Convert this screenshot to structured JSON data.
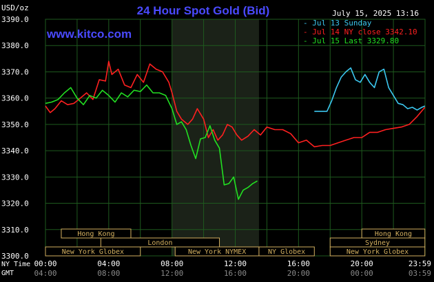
{
  "chart_data": {
    "type": "line",
    "title": "24 Hour Spot Gold (Bid)",
    "source": "www.kitco.com",
    "ylabel": "USD/oz",
    "date": "July 15, 2025 13:16",
    "ylim": [
      3300,
      3390
    ],
    "yticks": [
      "3390.0",
      "3380.0",
      "3370.0",
      "3360.0",
      "3350.0",
      "3340.0",
      "3330.0",
      "3320.0",
      "3310.0",
      "3300.0"
    ],
    "xlim": [
      0,
      24
    ],
    "xrow1_label": "NY Time",
    "xrow2_label": "GMT",
    "xticks_ny": [
      "00:00",
      "04:00",
      "08:00",
      "12:00",
      "16:00",
      "20:00",
      "23:59"
    ],
    "xticks_gmt": [
      "04:00",
      "08:00",
      "12:00",
      "16:00",
      "20:00",
      "00:00",
      "03:59"
    ],
    "shaded_region_hours": [
      8.0,
      13.5
    ],
    "colors": {
      "background": "#000000",
      "grid": "#1e5a1e",
      "axis_text": "#ffffff",
      "title": "#4a4aff",
      "source": "#4a4aff",
      "session_fill": "#000000",
      "session_border": "#d4b060",
      "session_text": "#d4b060",
      "shaded": "#1b2218"
    },
    "legend": {
      "placement": "top-right",
      "entries": [
        {
          "label": "Jul 13 Sunday",
          "color": "#3cc8f0"
        },
        {
          "label": "Jul 14 NY close 3342.10",
          "color": "#ff2020"
        },
        {
          "label": "Jul 15 Last 3329.80",
          "color": "#22e022"
        }
      ]
    },
    "sessions": [
      {
        "label": "Hong Kong",
        "start": 1.0,
        "end": 5.4,
        "row": 0
      },
      {
        "label": "London",
        "start": 3.5,
        "end": 11.0,
        "row": 1
      },
      {
        "label": "New York Globex",
        "start": 0.0,
        "end": 6.0,
        "row": 2
      },
      {
        "label": "New York NYMEX",
        "start": 8.2,
        "end": 13.5,
        "row": 2
      },
      {
        "label": "NY Globex",
        "start": 13.5,
        "end": 17.0,
        "row": 2
      },
      {
        "label": "Hong Kong",
        "start": 20.0,
        "end": 23.99,
        "row": 0
      },
      {
        "label": "Sydney",
        "start": 18.0,
        "end": 23.99,
        "row": 1
      },
      {
        "label": "New York Globex",
        "start": 18.0,
        "end": 23.99,
        "row": 2
      }
    ],
    "series": [
      {
        "name": "Jul 14 NY close 3342.10",
        "color": "#ff2020",
        "x": [
          0.0,
          0.3,
          0.6,
          1.0,
          1.4,
          1.8,
          2.2,
          2.6,
          3.0,
          3.4,
          3.8,
          4.0,
          4.2,
          4.6,
          5.0,
          5.4,
          5.8,
          6.2,
          6.6,
          7.0,
          7.4,
          7.8,
          8.0,
          8.3,
          8.6,
          9.0,
          9.3,
          9.6,
          10.0,
          10.3,
          10.6,
          10.9,
          11.2,
          11.5,
          11.8,
          12.1,
          12.4,
          12.8,
          13.2,
          13.6,
          14.0,
          14.5,
          15.0,
          15.5,
          16.0,
          16.5,
          17.0,
          17.5,
          18.0,
          18.5,
          19.0,
          19.5,
          20.0,
          20.5,
          21.0,
          21.5,
          22.0,
          22.5,
          23.0,
          23.5,
          23.99
        ],
        "values": [
          3357.0,
          3354.5,
          3356.0,
          3359.0,
          3357.5,
          3358.0,
          3360.0,
          3362.0,
          3359.5,
          3367.0,
          3366.5,
          3374.0,
          3369.0,
          3371.0,
          3365.0,
          3364.0,
          3369.0,
          3366.0,
          3373.0,
          3371.0,
          3370.0,
          3366.0,
          3362.0,
          3355.0,
          3352.0,
          3350.0,
          3352.0,
          3356.0,
          3352.0,
          3345.0,
          3348.0,
          3344.0,
          3346.0,
          3350.0,
          3349.0,
          3346.0,
          3344.0,
          3345.5,
          3348.0,
          3346.0,
          3349.0,
          3348.0,
          3348.0,
          3346.5,
          3343.0,
          3344.0,
          3341.5,
          3342.0,
          3342.0,
          3343.0,
          3344.0,
          3345.0,
          3345.0,
          3347.0,
          3347.0,
          3348.0,
          3348.5,
          3349.0,
          3350.0,
          3353.0,
          3356.5
        ]
      },
      {
        "name": "Jul 15 Last 3329.80",
        "color": "#22e022",
        "x": [
          0.0,
          0.4,
          0.8,
          1.2,
          1.6,
          2.0,
          2.4,
          2.8,
          3.2,
          3.6,
          4.0,
          4.4,
          4.8,
          5.2,
          5.6,
          6.0,
          6.4,
          6.8,
          7.2,
          7.6,
          8.0,
          8.3,
          8.6,
          8.9,
          9.2,
          9.5,
          9.8,
          10.1,
          10.4,
          10.7,
          11.0,
          11.3,
          11.6,
          11.9,
          12.2,
          12.5,
          12.8,
          13.1,
          13.4
        ],
        "values": [
          3358.0,
          3358.5,
          3359.5,
          3362.0,
          3364.0,
          3360.0,
          3357.5,
          3361.0,
          3360.0,
          3363.0,
          3361.0,
          3358.5,
          3362.0,
          3360.5,
          3363.0,
          3362.5,
          3365.0,
          3362.0,
          3362.0,
          3361.0,
          3356.0,
          3350.0,
          3351.0,
          3348.0,
          3342.0,
          3337.0,
          3344.5,
          3345.0,
          3349.5,
          3344.0,
          3341.0,
          3327.0,
          3327.5,
          3330.0,
          3321.5,
          3325.0,
          3326.0,
          3327.5,
          3328.5
        ]
      },
      {
        "name": "Jul 13 Sunday",
        "color": "#3cc8f0",
        "x": [
          17.0,
          17.4,
          17.8,
          18.1,
          18.4,
          18.7,
          19.0,
          19.3,
          19.6,
          19.9,
          20.2,
          20.5,
          20.8,
          21.1,
          21.4,
          21.7,
          22.0,
          22.3,
          22.6,
          22.9,
          23.2,
          23.5,
          23.8,
          23.99
        ],
        "values": [
          3355.0,
          3355.0,
          3355.0,
          3359.0,
          3364.0,
          3368.0,
          3370.0,
          3371.5,
          3367.0,
          3366.0,
          3369.0,
          3366.0,
          3364.0,
          3370.0,
          3371.0,
          3364.0,
          3361.0,
          3358.0,
          3357.5,
          3356.0,
          3356.5,
          3355.5,
          3356.5,
          3357.0
        ]
      }
    ]
  }
}
